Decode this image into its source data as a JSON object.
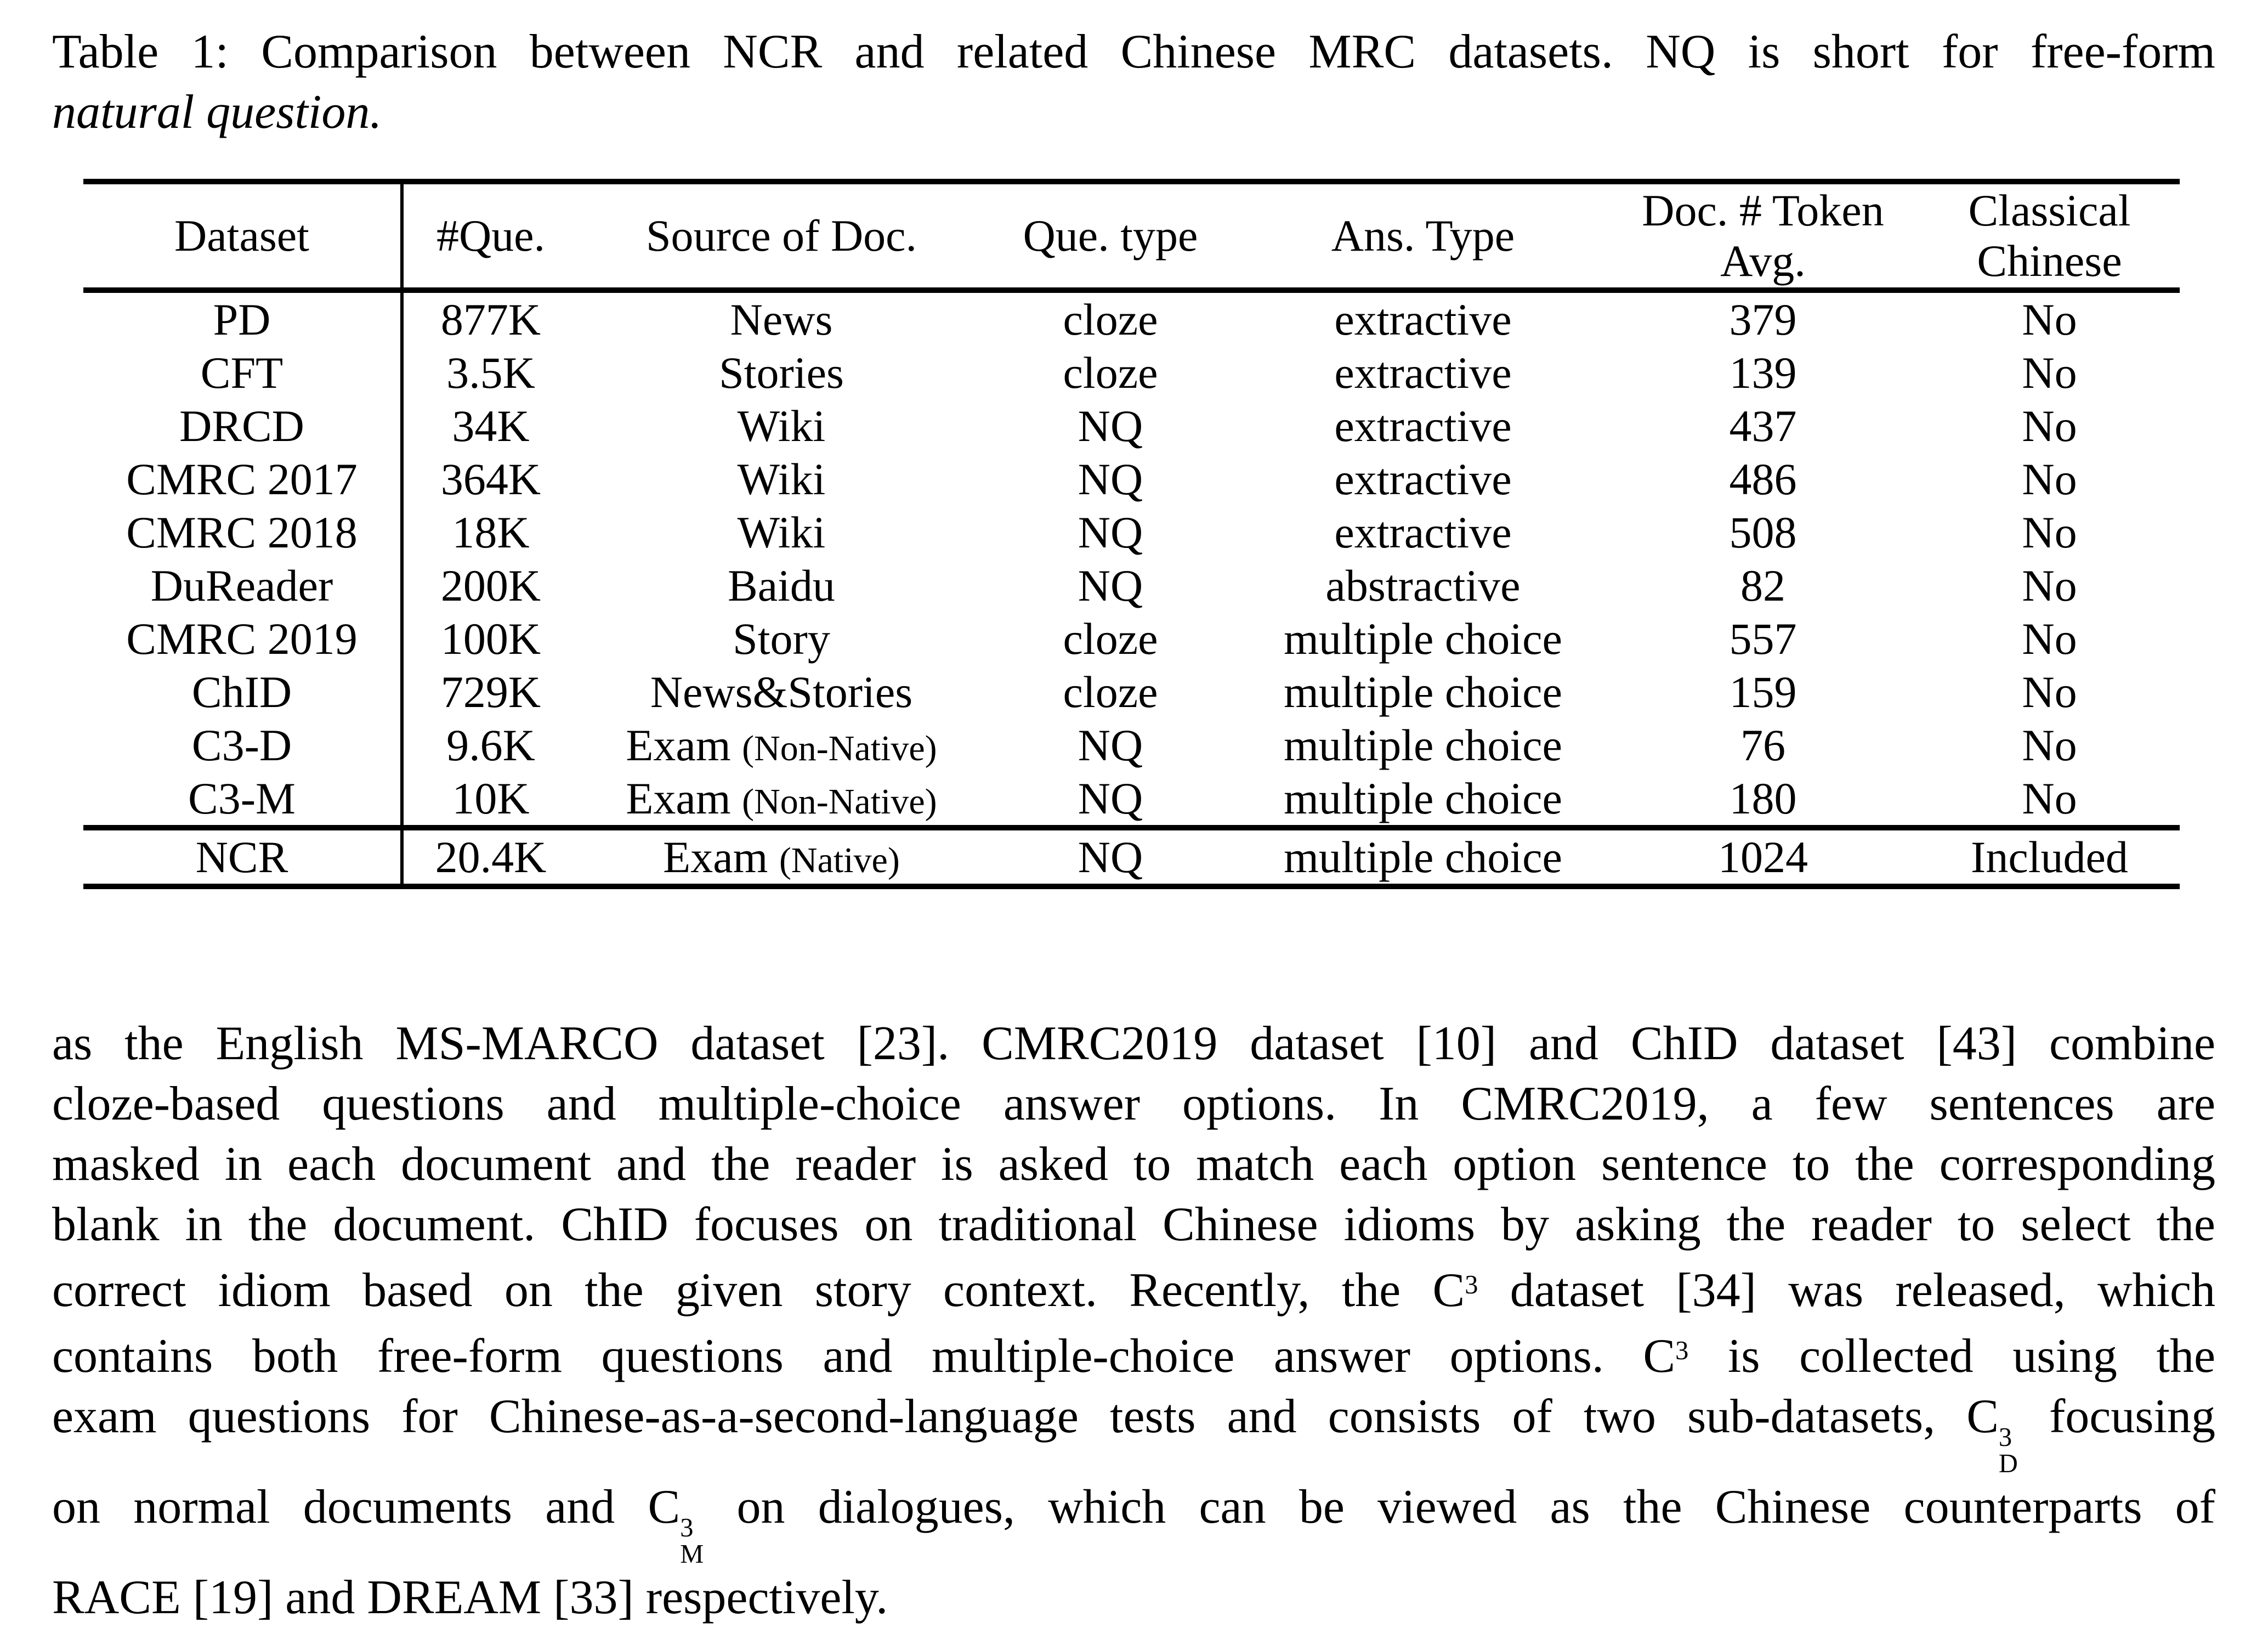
{
  "caption": {
    "line1": "Table 1: Comparison between NCR and related Chinese MRC datasets. NQ is short for free-form",
    "line2_italic": "natural question."
  },
  "table": {
    "header": [
      {
        "key": "dataset",
        "lines": [
          "Dataset"
        ]
      },
      {
        "key": "questions",
        "lines": [
          "#Que."
        ]
      },
      {
        "key": "source",
        "lines": [
          "Source of Doc."
        ]
      },
      {
        "key": "que-type",
        "lines": [
          "Que. type"
        ]
      },
      {
        "key": "ans-type",
        "lines": [
          "Ans. Type"
        ]
      },
      {
        "key": "doc-tokens",
        "lines": [
          "Doc. # Token",
          "Avg."
        ]
      },
      {
        "key": "classical",
        "lines": [
          "Classical",
          "Chinese"
        ]
      }
    ],
    "rows": [
      {
        "dataset": "PD",
        "questions": "877K",
        "source": "News",
        "source_note": "",
        "que_type": "cloze",
        "ans_type": "extractive",
        "doc_tokens": "379",
        "classical": "No",
        "group": "related"
      },
      {
        "dataset": "CFT",
        "questions": "3.5K",
        "source": "Stories",
        "source_note": "",
        "que_type": "cloze",
        "ans_type": "extractive",
        "doc_tokens": "139",
        "classical": "No",
        "group": "related"
      },
      {
        "dataset": "DRCD",
        "questions": "34K",
        "source": "Wiki",
        "source_note": "",
        "que_type": "NQ",
        "ans_type": "extractive",
        "doc_tokens": "437",
        "classical": "No",
        "group": "related"
      },
      {
        "dataset": "CMRC 2017",
        "questions": "364K",
        "source": "Wiki",
        "source_note": "",
        "que_type": "NQ",
        "ans_type": "extractive",
        "doc_tokens": "486",
        "classical": "No",
        "group": "related"
      },
      {
        "dataset": "CMRC 2018",
        "questions": "18K",
        "source": "Wiki",
        "source_note": "",
        "que_type": "NQ",
        "ans_type": "extractive",
        "doc_tokens": "508",
        "classical": "No",
        "group": "related"
      },
      {
        "dataset": "DuReader",
        "questions": "200K",
        "source": "Baidu",
        "source_note": "",
        "que_type": "NQ",
        "ans_type": "abstractive",
        "doc_tokens": "82",
        "classical": "No",
        "group": "related"
      },
      {
        "dataset": "CMRC 2019",
        "questions": "100K",
        "source": "Story",
        "source_note": "",
        "que_type": "cloze",
        "ans_type": "multiple choice",
        "doc_tokens": "557",
        "classical": "No",
        "group": "related"
      },
      {
        "dataset": "ChID",
        "questions": "729K",
        "source": "News&Stories",
        "source_note": "",
        "que_type": "cloze",
        "ans_type": "multiple choice",
        "doc_tokens": "159",
        "classical": "No",
        "group": "related"
      },
      {
        "dataset": "C3-D",
        "questions": "9.6K",
        "source": "Exam",
        "source_note": "(Non-Native)",
        "que_type": "NQ",
        "ans_type": "multiple choice",
        "doc_tokens": "76",
        "classical": "No",
        "group": "related"
      },
      {
        "dataset": "C3-M",
        "questions": "10K",
        "source": "Exam",
        "source_note": "(Non-Native)",
        "que_type": "NQ",
        "ans_type": "multiple choice",
        "doc_tokens": "180",
        "classical": "No",
        "group": "related"
      },
      {
        "dataset": "NCR",
        "questions": "20.4K",
        "source": "Exam",
        "source_note": "(Native)",
        "que_type": "NQ",
        "ans_type": "multiple choice",
        "doc_tokens": "1024",
        "classical": "Included",
        "group": "ncr"
      }
    ]
  },
  "paragraph": {
    "lines": [
      {
        "justify": true,
        "segments": [
          {
            "t": "as the English MS-MARCO dataset [23]. CMRC2019 dataset [10] and ChID dataset [43] combine"
          }
        ]
      },
      {
        "justify": true,
        "segments": [
          {
            "t": "cloze-based questions and multiple-choice answer options. In CMRC2019, a few sentences are"
          }
        ]
      },
      {
        "justify": true,
        "segments": [
          {
            "t": "masked in each document and the reader is asked to match each option sentence to the corresponding"
          }
        ]
      },
      {
        "justify": true,
        "segments": [
          {
            "t": "blank in the document. ChID focuses on traditional Chinese idioms by asking the reader to select the"
          }
        ]
      },
      {
        "justify": true,
        "segments": [
          {
            "t": "correct idiom based on the given story context. Recently, the "
          },
          {
            "t": "C",
            "sup": "3"
          },
          {
            "t": " dataset [34] was released, which"
          }
        ]
      },
      {
        "justify": true,
        "segments": [
          {
            "t": "contains both free-form questions and multiple-choice answer options. "
          },
          {
            "t": "C",
            "sup": "3"
          },
          {
            "t": " is collected using the"
          }
        ]
      },
      {
        "justify": true,
        "segments": [
          {
            "t": "exam questions for Chinese-as-a-second-language tests and consists of two sub-datasets, "
          },
          {
            "t": "C",
            "sup": "3",
            "sub": "D"
          },
          {
            "t": " focusing"
          }
        ]
      },
      {
        "justify": true,
        "segments": [
          {
            "t": "on normal documents and "
          },
          {
            "t": "C",
            "sup": "3",
            "sub": "M"
          },
          {
            "t": " on dialogues, which can be viewed as the Chinese counterparts of"
          }
        ]
      },
      {
        "justify": false,
        "segments": [
          {
            "t": "RACE [19] and DREAM [33] respectively."
          }
        ]
      }
    ]
  }
}
